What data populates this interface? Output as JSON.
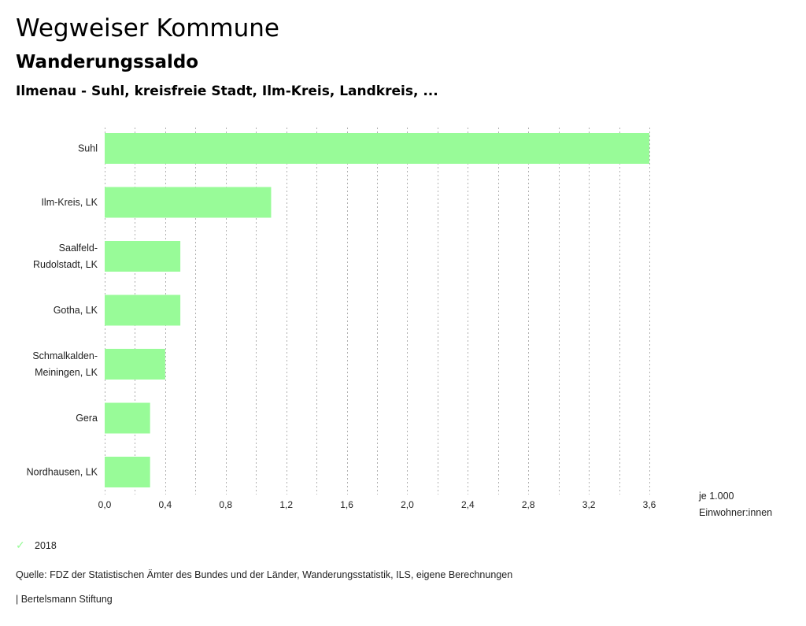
{
  "header": {
    "title": "Wegweiser Kommune",
    "subtitle": "Wanderungssaldo",
    "region": "Ilmenau - Suhl, kreisfreie Stadt, Ilm-Kreis, Landkreis, ..."
  },
  "chart_data": {
    "type": "bar",
    "orientation": "horizontal",
    "title": "Wanderungssaldo",
    "categories": [
      [
        "Suhl"
      ],
      [
        "Ilm-Kreis, LK"
      ],
      [
        "Saalfeld-",
        "Rudolstadt, LK"
      ],
      [
        "Gotha, LK"
      ],
      [
        "Schmalkalden-",
        "Meiningen, LK"
      ],
      [
        "Gera"
      ],
      [
        "Nordhausen, LK"
      ]
    ],
    "series": [
      {
        "name": "2018",
        "color": "#98fb98",
        "values": [
          3.6,
          1.1,
          0.5,
          0.5,
          0.4,
          0.3,
          0.3
        ]
      }
    ],
    "xlim": [
      0,
      3.6
    ],
    "xticks": [
      0,
      0.4,
      0.8,
      1.2,
      1.6,
      2.0,
      2.4,
      2.8,
      3.2,
      3.6
    ],
    "xtick_labels": [
      "0,0",
      "0,4",
      "0,8",
      "1,2",
      "1,6",
      "2,0",
      "2,4",
      "2,8",
      "3,2",
      "3,6"
    ],
    "minor_grid_step": 0.2,
    "grid": true,
    "xlabel": [
      "je 1.000",
      "Einwohner:innen"
    ],
    "legend_position": "bottom-left"
  },
  "legend": {
    "label": "2018",
    "icon": "check-icon",
    "color": "#98fb98"
  },
  "footer": {
    "source": "Quelle: FDZ der Statistischen Ämter des Bundes und der Länder, Wanderungsstatistik, ILS, eigene Berechnungen",
    "credit": "| Bertelsmann Stiftung"
  }
}
